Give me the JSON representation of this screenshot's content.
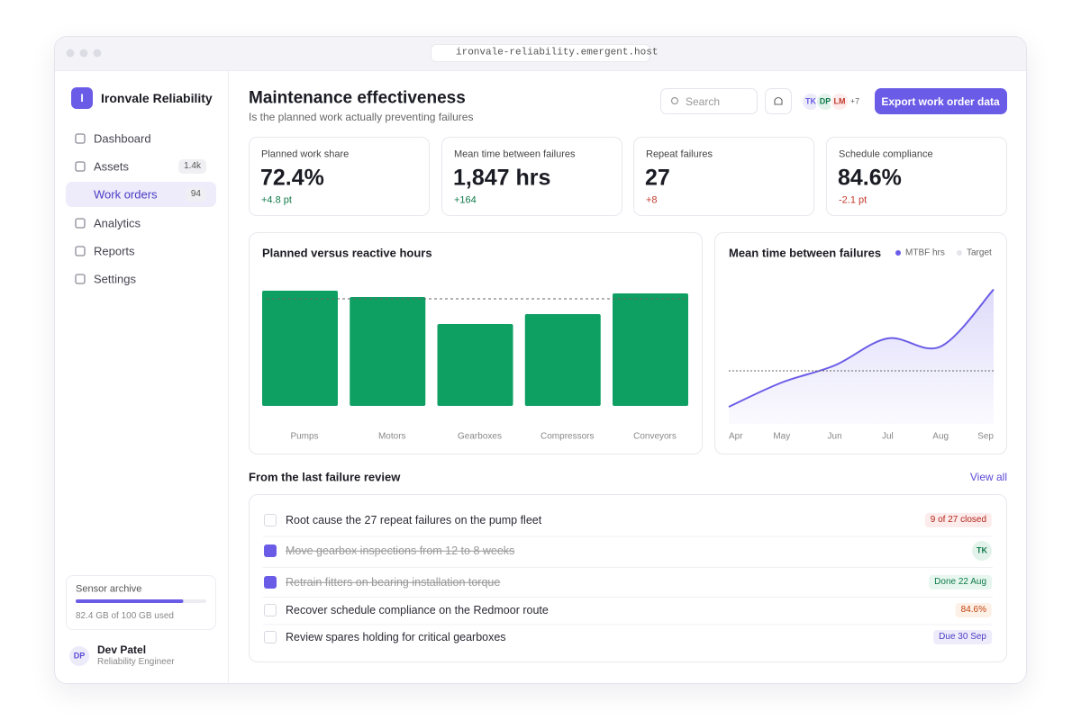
{
  "browser": {
    "url": "ironvale-reliability.emergent.host"
  },
  "sidebar": {
    "logo": "I",
    "brand": "Ironvale Reliability",
    "nav": [
      {
        "label": "Dashboard"
      },
      {
        "label": "Assets",
        "badge": "1.4k"
      },
      {
        "label": "Work orders",
        "badge": "94",
        "active": true
      },
      {
        "label": "Analytics"
      },
      {
        "label": "Reports"
      },
      {
        "label": "Settings"
      }
    ],
    "storage": {
      "title": "Sensor archive",
      "used": 82.4,
      "total": 100,
      "caption": "82.4 GB of 100 GB used"
    },
    "user": {
      "initials": "DP",
      "name": "Dev Patel",
      "role": "Reliability Engineer"
    }
  },
  "header": {
    "title": "Maintenance effectiveness",
    "subtitle": "Is the planned work actually preventing failures",
    "search": "Search",
    "avatars": [
      {
        "initials": "TK",
        "color": "#6b5ce7",
        "bg": "#ecebfa"
      },
      {
        "initials": "DP",
        "color": "#0f7a4a",
        "bg": "#e3f3ec"
      },
      {
        "initials": "LM",
        "color": "#c0392b",
        "bg": "#fdecec"
      }
    ],
    "more": "+7",
    "button": "Export work order data"
  },
  "kpis": [
    {
      "label": "Planned work share",
      "value": "72.4%",
      "delta": "+4.8 pt",
      "trend": "up"
    },
    {
      "label": "Mean time between failures",
      "value": "1,847 hrs",
      "delta": "+164",
      "trend": "up"
    },
    {
      "label": "Repeat failures",
      "value": "27",
      "delta": "+8",
      "trend": "down"
    },
    {
      "label": "Schedule compliance",
      "value": "84.6%",
      "delta": "-2.1 pt",
      "trend": "down"
    }
  ],
  "bar_chart": {
    "type": "bar",
    "title": "Planned versus reactive hours",
    "categories": [
      "Pumps",
      "Motors",
      "Gearboxes",
      "Compressors",
      "Conveyors"
    ],
    "values": [
      1280,
      1210,
      910,
      1020,
      1250
    ],
    "target": 1190,
    "ylim": [
      0,
      1400
    ],
    "color": "#0e9f63"
  },
  "line_chart": {
    "type": "line",
    "title": "Mean time between failures",
    "categories": [
      "Apr",
      "May",
      "Jun",
      "Jul",
      "Aug",
      "Sep"
    ],
    "series": [
      {
        "name": "MTBF hrs",
        "color": "#6b5ce7",
        "values": [
          1195,
          1330,
          1425,
          1575,
          1530,
          1847
        ]
      }
    ],
    "target": {
      "name": "Target",
      "color": "#e4e4ea",
      "value": 1395
    },
    "ylim": [
      1100,
      1950
    ]
  },
  "review": {
    "title": "From the last failure review",
    "link": "View all",
    "items": [
      {
        "text": "Root cause the 27 repeat failures on the pump fleet",
        "done": false,
        "tag": "9 of 27 closed",
        "tag_style": "red"
      },
      {
        "text": "Move gearbox inspections from 12 to 8 weeks",
        "done": true,
        "tag": "TK",
        "tag_style": "avatar"
      },
      {
        "text": "Retrain fitters on bearing installation torque",
        "done": true,
        "tag": "Done 22 Aug",
        "tag_style": "green"
      },
      {
        "text": "Recover schedule compliance on the Redmoor route",
        "done": false,
        "tag": "84.6%",
        "tag_style": "orange"
      },
      {
        "text": "Review spares holding for critical gearboxes",
        "done": false,
        "tag": "Due 30 Sep",
        "tag_style": "purple"
      }
    ]
  }
}
